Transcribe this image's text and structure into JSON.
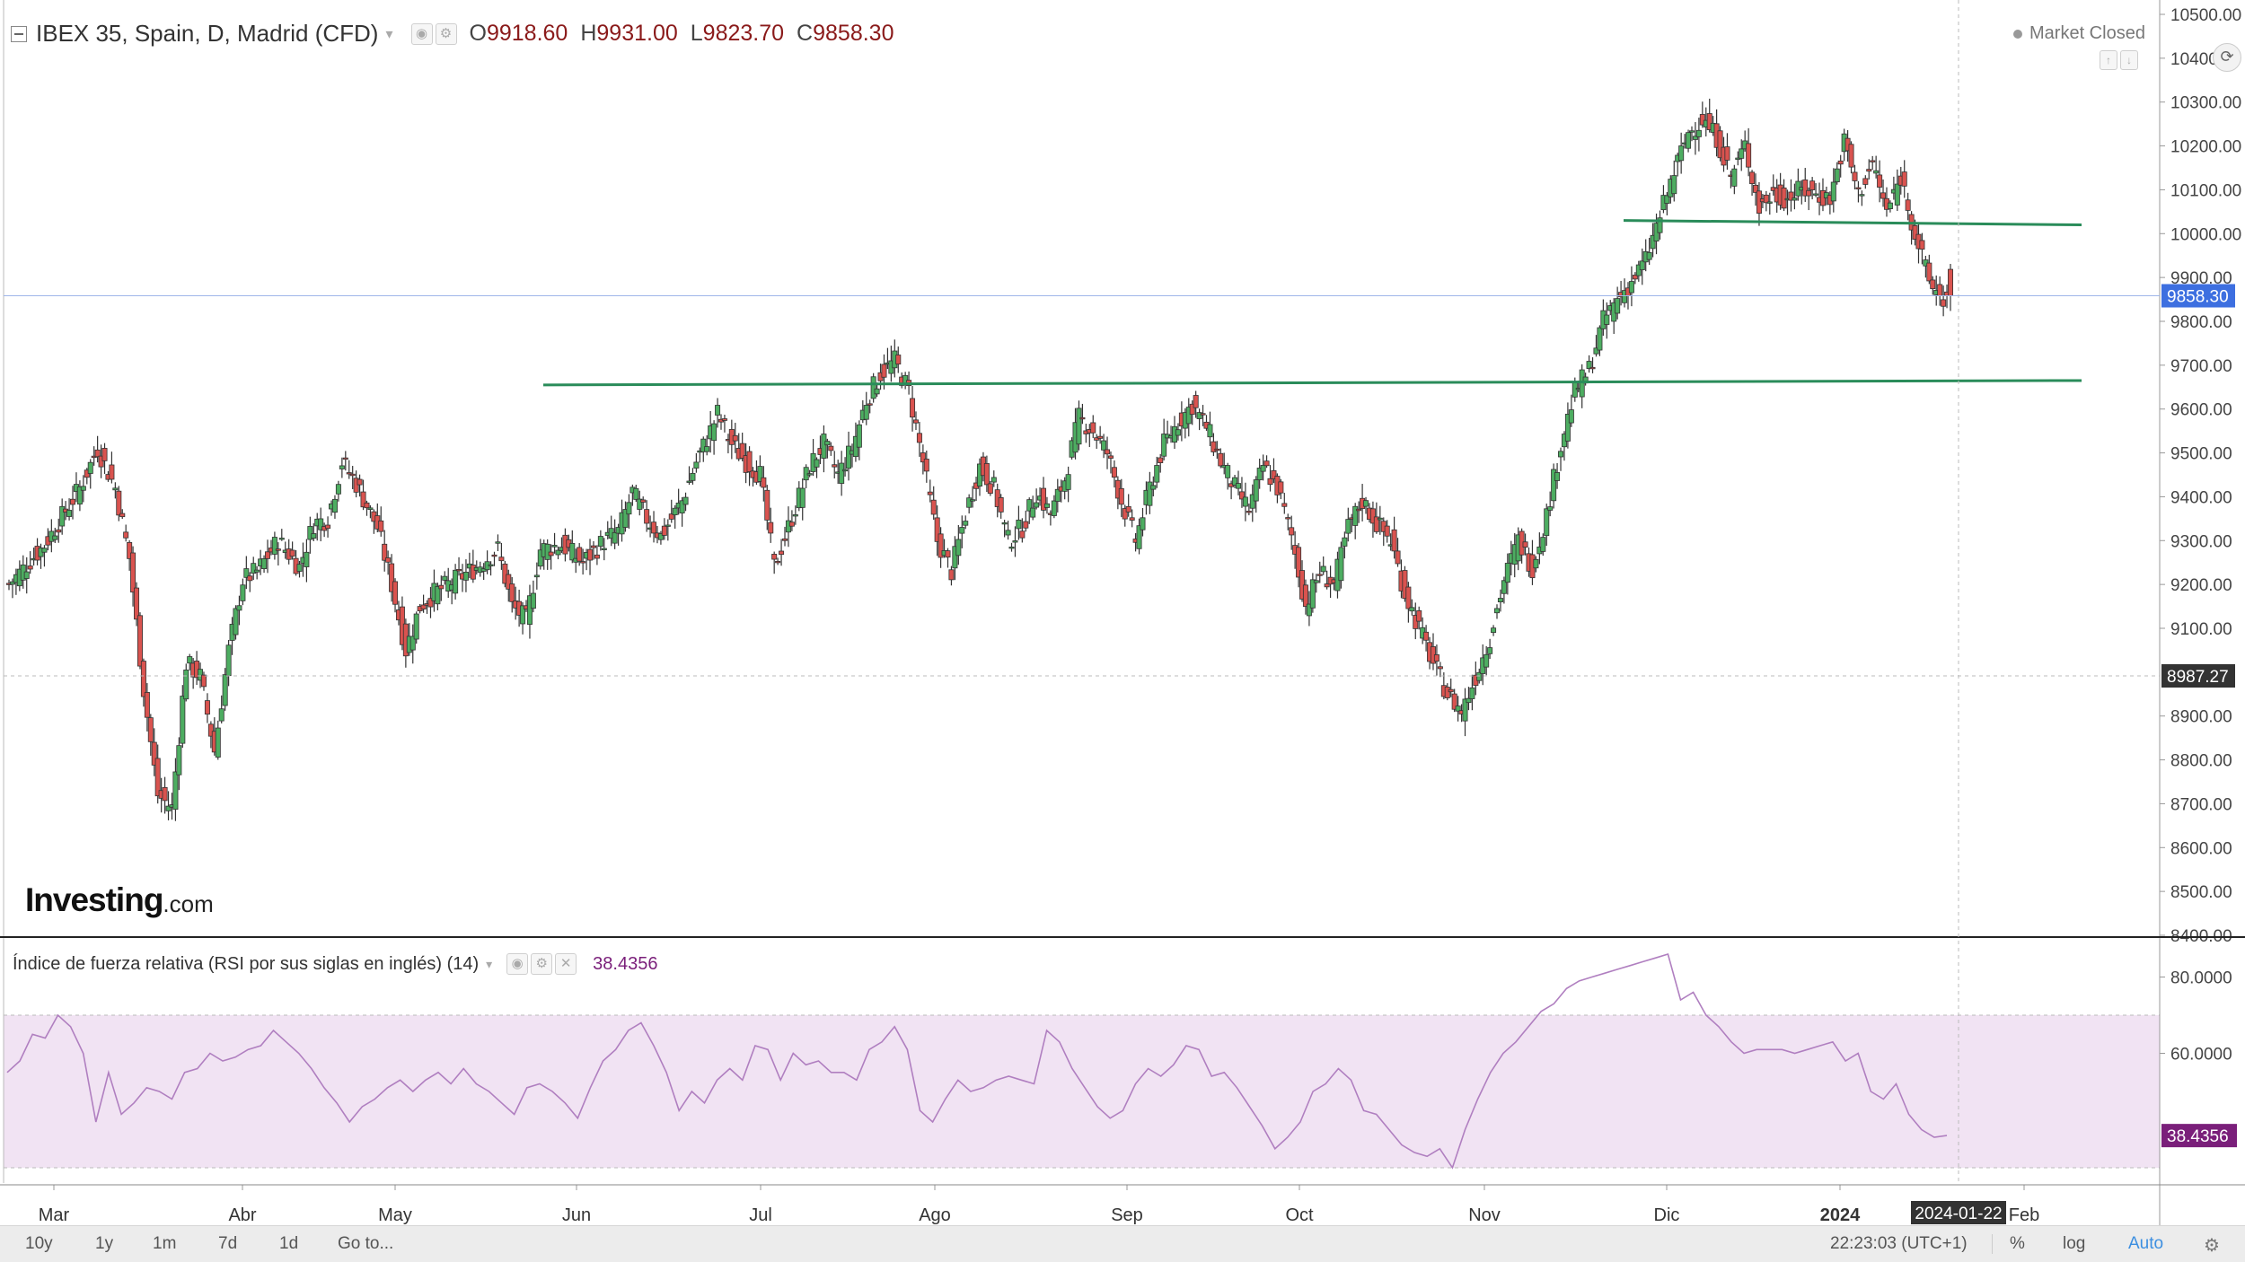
{
  "header": {
    "symbol": "IBEX 35, Spain, D, Madrid (CFD)",
    "ohlc": [
      {
        "key": "O",
        "value": "9918.60"
      },
      {
        "key": "H",
        "value": "9931.00"
      },
      {
        "key": "L",
        "value": "9823.70"
      },
      {
        "key": "C",
        "value": "9858.30"
      }
    ],
    "market_status": "Market Closed"
  },
  "logo": {
    "main": "Investing",
    "suffix": ".com"
  },
  "rsi_header": {
    "label": "Índice de fuerza relativa (RSI por sus siglas en inglés) (14)",
    "value": "38.4356"
  },
  "toolbar": {
    "ranges": [
      "10y",
      "1y",
      "1m",
      "7d",
      "1d",
      "Go to..."
    ],
    "time": "22:23:03 (UTC+1)",
    "options": [
      "%",
      "log",
      "Auto"
    ]
  },
  "colors": {
    "up": "#4dad61",
    "down": "#d9534f",
    "rsi_line": "#b07fc0",
    "rsi_band": "#f1e3f3",
    "level_line": "#2a8c5a",
    "price_tag": "#3d6fe0",
    "rsi_tag": "#7a1f7a",
    "dark_tag": "#333333"
  },
  "chart_data": [
    {
      "type": "candlestick",
      "title": "IBEX 35, Spain, D, Madrid (CFD)",
      "y_ticks": [
        "10500.00",
        "10400.00",
        "10300.00",
        "10200.00",
        "10100.00",
        "10000.00",
        "9900.00",
        "9800.00",
        "9700.00",
        "9600.00",
        "9500.00",
        "9400.00",
        "9300.00",
        "9200.00",
        "9100.00",
        "8900.00",
        "8800.00",
        "8700.00",
        "8600.00",
        "8500.00",
        "8400.00"
      ],
      "ylim": [
        8400,
        10500
      ],
      "x_labels": [
        "Mar",
        "Abr",
        "May",
        "Jun",
        "Jul",
        "Ago",
        "Sep",
        "Oct",
        "Nov",
        "Dic",
        "2024",
        "Feb"
      ],
      "current_price": "9858.30",
      "marker_price": "8987.27",
      "cursor_date": "2024-01-22",
      "horizontal_levels": [
        {
          "from": "Jun",
          "y_start": 9655,
          "y_end": 9665
        },
        {
          "from": "Nov",
          "y_start": 10030,
          "y_end": 10020
        }
      ],
      "last_candle": {
        "open": 9918.6,
        "high": 9931.0,
        "low": 9823.7,
        "close": 9858.3
      },
      "path": [
        [
          0,
          9200
        ],
        [
          10,
          9290
        ],
        [
          20,
          9420
        ],
        [
          25,
          9510
        ],
        [
          30,
          9420
        ],
        [
          34,
          9260
        ],
        [
          38,
          8960
        ],
        [
          42,
          8720
        ],
        [
          46,
          8690
        ],
        [
          50,
          9020
        ],
        [
          54,
          8990
        ],
        [
          58,
          8820
        ],
        [
          62,
          9050
        ],
        [
          66,
          9210
        ],
        [
          70,
          9230
        ],
        [
          76,
          9300
        ],
        [
          82,
          9240
        ],
        [
          86,
          9340
        ],
        [
          90,
          9350
        ],
        [
          94,
          9480
        ],
        [
          98,
          9430
        ],
        [
          104,
          9330
        ],
        [
          108,
          9200
        ],
        [
          112,
          9050
        ],
        [
          116,
          9150
        ],
        [
          120,
          9180
        ],
        [
          126,
          9210
        ],
        [
          132,
          9240
        ],
        [
          138,
          9280
        ],
        [
          142,
          9150
        ],
        [
          146,
          9120
        ],
        [
          150,
          9280
        ],
        [
          156,
          9290
        ],
        [
          162,
          9250
        ],
        [
          168,
          9300
        ],
        [
          172,
          9320
        ],
        [
          176,
          9410
        ],
        [
          180,
          9350
        ],
        [
          184,
          9310
        ],
        [
          190,
          9390
        ],
        [
          194,
          9480
        ],
        [
          198,
          9550
        ],
        [
          200,
          9590
        ],
        [
          204,
          9520
        ],
        [
          208,
          9480
        ],
        [
          212,
          9450
        ],
        [
          216,
          9240
        ],
        [
          220,
          9330
        ],
        [
          226,
          9470
        ],
        [
          230,
          9520
        ],
        [
          234,
          9450
        ],
        [
          238,
          9510
        ],
        [
          242,
          9620
        ],
        [
          246,
          9680
        ],
        [
          250,
          9710
        ],
        [
          254,
          9640
        ],
        [
          258,
          9480
        ],
        [
          262,
          9300
        ],
        [
          266,
          9230
        ],
        [
          270,
          9360
        ],
        [
          274,
          9470
        ],
        [
          278,
          9420
        ],
        [
          282,
          9300
        ],
        [
          286,
          9330
        ],
        [
          290,
          9410
        ],
        [
          294,
          9360
        ],
        [
          298,
          9440
        ],
        [
          302,
          9580
        ],
        [
          306,
          9550
        ],
        [
          310,
          9500
        ],
        [
          314,
          9390
        ],
        [
          318,
          9300
        ],
        [
          322,
          9420
        ],
        [
          326,
          9520
        ],
        [
          330,
          9570
        ],
        [
          334,
          9610
        ],
        [
          338,
          9560
        ],
        [
          342,
          9480
        ],
        [
          346,
          9420
        ],
        [
          350,
          9370
        ],
        [
          354,
          9470
        ],
        [
          358,
          9420
        ],
        [
          362,
          9310
        ],
        [
          366,
          9150
        ],
        [
          370,
          9230
        ],
        [
          374,
          9200
        ],
        [
          378,
          9330
        ],
        [
          382,
          9390
        ],
        [
          386,
          9340
        ],
        [
          390,
          9300
        ],
        [
          394,
          9180
        ],
        [
          398,
          9100
        ],
        [
          402,
          9020
        ],
        [
          406,
          8950
        ],
        [
          410,
          8910
        ],
        [
          414,
          8990
        ],
        [
          418,
          9080
        ],
        [
          422,
          9210
        ],
        [
          426,
          9300
        ],
        [
          430,
          9240
        ],
        [
          434,
          9360
        ],
        [
          438,
          9520
        ],
        [
          442,
          9640
        ],
        [
          446,
          9690
        ],
        [
          450,
          9800
        ],
        [
          454,
          9850
        ],
        [
          458,
          9890
        ],
        [
          462,
          9940
        ],
        [
          466,
          10040
        ],
        [
          470,
          10140
        ],
        [
          474,
          10230
        ],
        [
          478,
          10260
        ],
        [
          482,
          10220
        ],
        [
          486,
          10130
        ],
        [
          490,
          10200
        ],
        [
          494,
          10060
        ],
        [
          498,
          10090
        ],
        [
          502,
          10080
        ],
        [
          506,
          10100
        ],
        [
          510,
          10090
        ],
        [
          514,
          10080
        ],
        [
          518,
          10210
        ],
        [
          522,
          10090
        ],
        [
          526,
          10160
        ],
        [
          530,
          10050
        ],
        [
          534,
          10130
        ],
        [
          538,
          10000
        ],
        [
          542,
          9890
        ],
        [
          546,
          9850
        ],
        [
          548,
          9858
        ]
      ]
    },
    {
      "type": "line",
      "title": "Índice de fuerza relativa (RSI por sus siglas en inglés) (14)",
      "y_ticks": [
        "80.0000",
        "60.0000"
      ],
      "ylim": [
        26,
        90
      ],
      "band": [
        30,
        70
      ],
      "current_value": "38.4356",
      "values": [
        55,
        58,
        65,
        64,
        70,
        67,
        60,
        42,
        55,
        44,
        47,
        51,
        50,
        48,
        55,
        56,
        60,
        58,
        59,
        61,
        62,
        66,
        63,
        60,
        56,
        51,
        47,
        42,
        46,
        48,
        51,
        53,
        50,
        53,
        55,
        52,
        56,
        52,
        50,
        47,
        44,
        51,
        52,
        50,
        47,
        43,
        51,
        58,
        61,
        66,
        68,
        62,
        55,
        45,
        50,
        47,
        53,
        56,
        53,
        62,
        61,
        53,
        60,
        57,
        58,
        55,
        55,
        53,
        61,
        63,
        67,
        61,
        45,
        42,
        48,
        53,
        50,
        51,
        53,
        54,
        53,
        52,
        66,
        63,
        56,
        51,
        46,
        43,
        45,
        52,
        56,
        54,
        57,
        62,
        61,
        54,
        55,
        51,
        46,
        41,
        35,
        38,
        42,
        50,
        52,
        56,
        53,
        45,
        44,
        40,
        36,
        34,
        33,
        35,
        30,
        40,
        48,
        55,
        60,
        63,
        67,
        71,
        73,
        77,
        79,
        80,
        81,
        82,
        83,
        84,
        85,
        86,
        74,
        76,
        70,
        67,
        63,
        60,
        61,
        61,
        61,
        60,
        61,
        62,
        63,
        58,
        60,
        50,
        48,
        52,
        44,
        40,
        38,
        38.4356
      ]
    }
  ]
}
